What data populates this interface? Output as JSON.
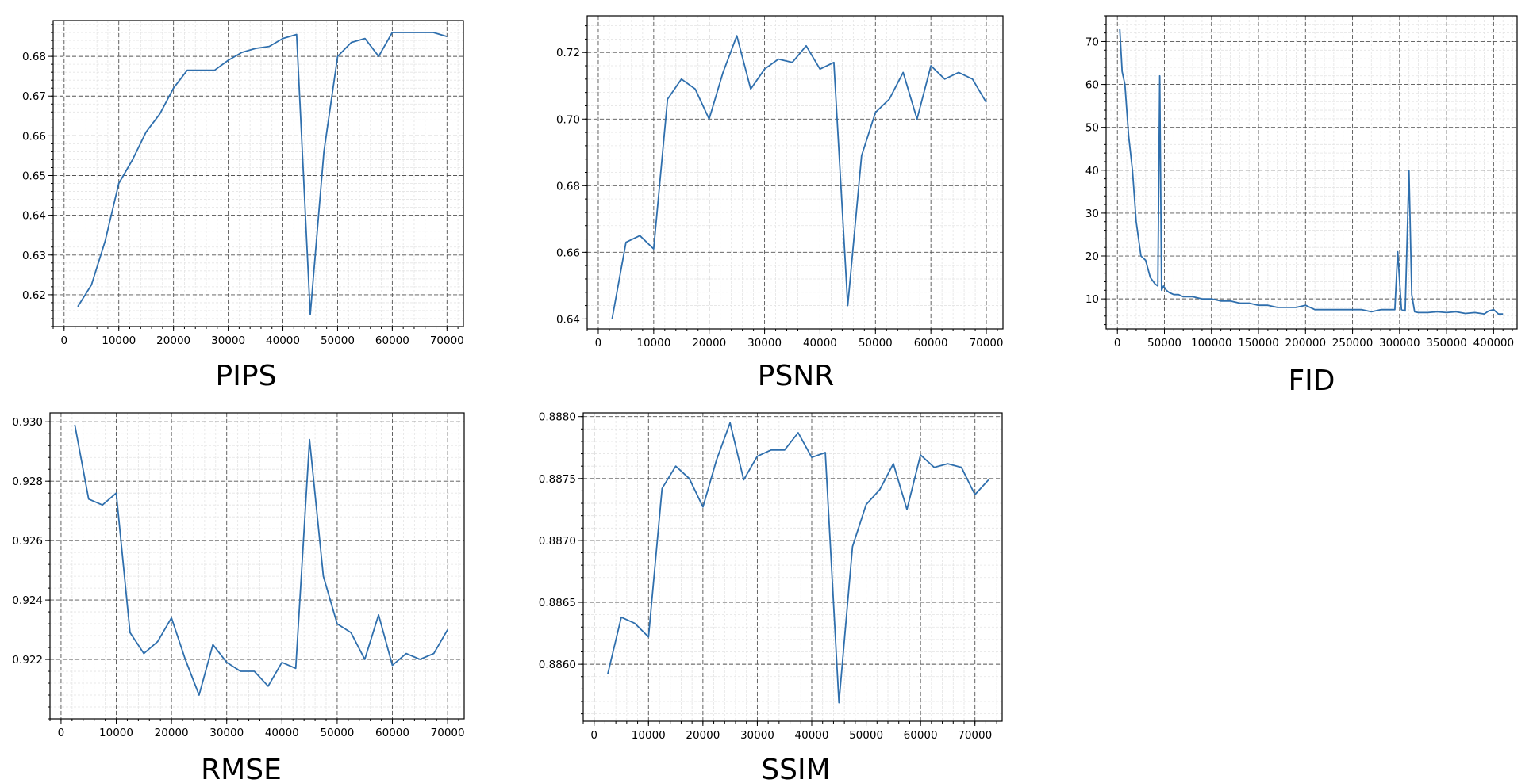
{
  "colors": {
    "line": "#2f6fad",
    "grid_major": "#555555",
    "grid_minor": "#e4e4e4"
  },
  "chart_data": [
    {
      "type": "line",
      "title": "PIPS",
      "xlabel": "",
      "ylabel": "",
      "xlim": [
        -2000,
        73000
      ],
      "ylim": [
        0.612,
        0.689
      ],
      "xticks": [
        0,
        10000,
        20000,
        30000,
        40000,
        50000,
        60000,
        70000
      ],
      "yticks": [
        0.62,
        0.63,
        0.64,
        0.65,
        0.66,
        0.67,
        0.68
      ],
      "ytick_decimals": 2,
      "grid": true,
      "x": [
        2500,
        5000,
        7500,
        10000,
        12500,
        15000,
        17500,
        20000,
        22500,
        25000,
        27500,
        30000,
        32500,
        35000,
        37500,
        40000,
        42500,
        45000,
        47500,
        50000,
        52500,
        55000,
        57500,
        60000,
        62500,
        65000,
        67500,
        70000
      ],
      "y": [
        0.617,
        0.6225,
        0.6335,
        0.648,
        0.654,
        0.661,
        0.6655,
        0.672,
        0.6765,
        0.6765,
        0.6765,
        0.679,
        0.681,
        0.682,
        0.6825,
        0.6845,
        0.6855,
        0.615,
        0.656,
        0.68,
        0.6835,
        0.6845,
        0.68,
        0.686,
        0.686,
        0.686,
        0.686,
        0.685
      ]
    },
    {
      "type": "line",
      "title": "PSNR",
      "xlabel": "",
      "ylabel": "",
      "xlim": [
        -2000,
        73000
      ],
      "ylim": [
        0.637,
        0.731
      ],
      "xticks": [
        0,
        10000,
        20000,
        30000,
        40000,
        50000,
        60000,
        70000
      ],
      "yticks": [
        0.64,
        0.66,
        0.68,
        0.7,
        0.72
      ],
      "ytick_decimals": 2,
      "grid": true,
      "x": [
        2500,
        5000,
        7500,
        10000,
        12500,
        15000,
        17500,
        20000,
        22500,
        25000,
        27500,
        30000,
        32500,
        35000,
        37500,
        40000,
        42500,
        45000,
        47500,
        50000,
        52500,
        55000,
        57500,
        60000,
        62500,
        65000,
        67500,
        70000
      ],
      "y": [
        0.64,
        0.663,
        0.665,
        0.661,
        0.706,
        0.712,
        0.709,
        0.7,
        0.714,
        0.725,
        0.709,
        0.715,
        0.718,
        0.717,
        0.722,
        0.715,
        0.717,
        0.644,
        0.689,
        0.702,
        0.706,
        0.714,
        0.7,
        0.716,
        0.712,
        0.714,
        0.712,
        0.705
      ]
    },
    {
      "type": "line",
      "title": "FID",
      "xlabel": "",
      "ylabel": "",
      "xlim": [
        -12000,
        425000
      ],
      "ylim": [
        3,
        76
      ],
      "xticks": [
        0,
        50000,
        100000,
        150000,
        200000,
        250000,
        300000,
        350000,
        400000
      ],
      "yticks": [
        10,
        20,
        30,
        40,
        50,
        60,
        70
      ],
      "ytick_decimals": 0,
      "grid": true,
      "x": [
        2500,
        5000,
        8000,
        12000,
        16000,
        20000,
        25000,
        30000,
        35000,
        40000,
        43000,
        45000,
        47000,
        49000,
        52000,
        55000,
        60000,
        65000,
        70000,
        80000,
        90000,
        100000,
        110000,
        120000,
        130000,
        140000,
        150000,
        160000,
        170000,
        180000,
        190000,
        200000,
        210000,
        220000,
        230000,
        240000,
        250000,
        260000,
        270000,
        280000,
        290000,
        295000,
        298000,
        302000,
        306000,
        310000,
        313000,
        316000,
        320000,
        330000,
        340000,
        350000,
        360000,
        370000,
        380000,
        390000,
        395000,
        400000,
        405000,
        410000
      ],
      "y": [
        73,
        63,
        60,
        48,
        40,
        28,
        20,
        19,
        15,
        13.5,
        13,
        62,
        12,
        13,
        12,
        11.5,
        11,
        11,
        10.5,
        10.5,
        10,
        10,
        9.5,
        9.5,
        9,
        9,
        8.5,
        8.5,
        8,
        8,
        8,
        8.5,
        7.5,
        7.5,
        7.5,
        7.5,
        7.5,
        7.5,
        7,
        7.5,
        7.5,
        7.5,
        21,
        7.5,
        7.2,
        40,
        11,
        7,
        6.8,
        6.8,
        7,
        6.8,
        7,
        6.6,
        6.8,
        6.5,
        7.2,
        7.5,
        6.5,
        6.5
      ]
    },
    {
      "type": "line",
      "title": "RMSE",
      "xlabel": "",
      "ylabel": "",
      "xlim": [
        -2000,
        73000
      ],
      "ylim": [
        0.92,
        0.9303
      ],
      "xticks": [
        0,
        10000,
        20000,
        30000,
        40000,
        50000,
        60000,
        70000
      ],
      "yticks": [
        0.922,
        0.924,
        0.926,
        0.928,
        0.93
      ],
      "ytick_decimals": 3,
      "grid": true,
      "x": [
        2500,
        5000,
        7500,
        10000,
        12500,
        15000,
        17500,
        20000,
        22500,
        25000,
        27500,
        30000,
        32500,
        35000,
        37500,
        40000,
        42500,
        45000,
        47500,
        50000,
        52500,
        55000,
        57500,
        60000,
        62500,
        65000,
        67500,
        70000
      ],
      "y": [
        0.9299,
        0.9274,
        0.9272,
        0.9276,
        0.9229,
        0.9222,
        0.9226,
        0.9234,
        0.922,
        0.9208,
        0.9225,
        0.9219,
        0.9216,
        0.9216,
        0.9211,
        0.9219,
        0.9217,
        0.9294,
        0.9248,
        0.9232,
        0.9229,
        0.922,
        0.9235,
        0.9218,
        0.9222,
        0.922,
        0.9222,
        0.923
      ]
    },
    {
      "type": "line",
      "title": "SSIM",
      "xlabel": "",
      "ylabel": "",
      "xlim": [
        -2000,
        75000
      ],
      "ylim": [
        0.88554,
        0.88803
      ],
      "xticks": [
        0,
        10000,
        20000,
        30000,
        40000,
        50000,
        60000,
        70000
      ],
      "yticks": [
        0.886,
        0.8865,
        0.887,
        0.8875,
        0.888
      ],
      "ytick_decimals": 4,
      "grid": true,
      "x": [
        2500,
        5000,
        7500,
        10000,
        12500,
        15000,
        17500,
        20000,
        22500,
        25000,
        27500,
        30000,
        32500,
        35000,
        37500,
        40000,
        42500,
        45000,
        47500,
        50000,
        52500,
        55000,
        57500,
        60000,
        62500,
        65000,
        67500,
        70000,
        72500
      ],
      "y": [
        0.88592,
        0.88638,
        0.88633,
        0.88622,
        0.88742,
        0.8876,
        0.8875,
        0.88727,
        0.88765,
        0.88795,
        0.88749,
        0.88768,
        0.88773,
        0.88773,
        0.88787,
        0.88767,
        0.88771,
        0.88569,
        0.88695,
        0.88729,
        0.88741,
        0.88762,
        0.88725,
        0.88769,
        0.88759,
        0.88762,
        0.88759,
        0.88737,
        0.88749
      ]
    }
  ]
}
